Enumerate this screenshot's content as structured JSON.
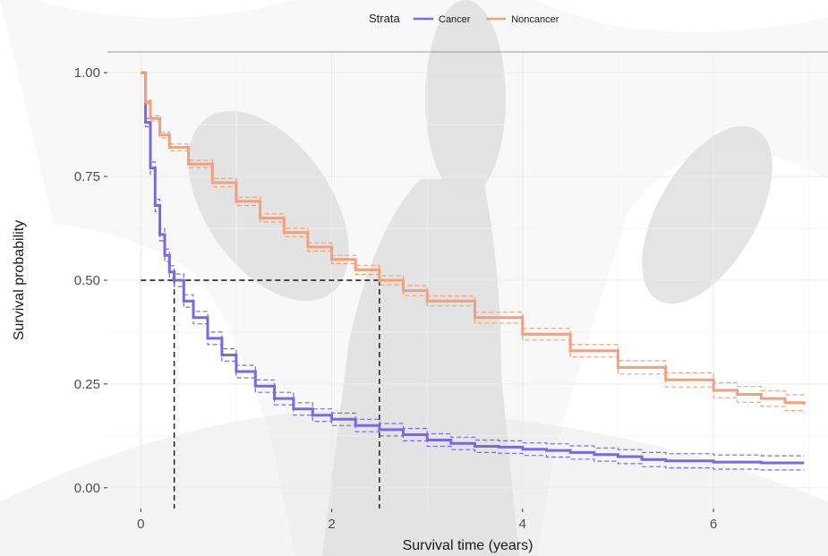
{
  "chart_data": {
    "type": "line",
    "xlabel": "Survival time (years)",
    "ylabel": "Survival probability",
    "xlim": [
      -0.35,
      7.2
    ],
    "ylim": [
      -0.05,
      1.05
    ],
    "x_ticks": [
      0,
      2,
      4,
      6
    ],
    "x_tick_labels": [
      "0",
      "2",
      "4",
      "6"
    ],
    "y_ticks": [
      0,
      0.25,
      0.5,
      0.75,
      1.0
    ],
    "y_tick_labels": [
      "0.00",
      "0.25",
      "0.50",
      "0.75",
      "1.00"
    ],
    "grid": true,
    "legend": {
      "title": "Strata",
      "position": "top"
    },
    "median_lines": [
      {
        "series": "Cancer",
        "x": 0.35,
        "y": 0.5
      },
      {
        "series": "Noncancer",
        "x": 2.5,
        "y": 0.5
      }
    ],
    "series": [
      {
        "name": "Cancer",
        "color": "#7B68DB",
        "x": [
          0,
          0.05,
          0.1,
          0.15,
          0.2,
          0.25,
          0.3,
          0.35,
          0.45,
          0.55,
          0.7,
          0.85,
          1.0,
          1.2,
          1.4,
          1.6,
          1.8,
          2.0,
          2.25,
          2.5,
          2.75,
          3.0,
          3.25,
          3.5,
          3.75,
          4.0,
          4.25,
          4.5,
          4.75,
          5.0,
          5.25,
          5.5,
          6.0,
          6.5,
          6.95
        ],
        "values": [
          1.0,
          0.88,
          0.77,
          0.68,
          0.61,
          0.56,
          0.52,
          0.5,
          0.45,
          0.41,
          0.36,
          0.32,
          0.28,
          0.245,
          0.215,
          0.19,
          0.175,
          0.165,
          0.15,
          0.14,
          0.128,
          0.115,
          0.107,
          0.1,
          0.098,
          0.093,
          0.09,
          0.085,
          0.08,
          0.075,
          0.068,
          0.065,
          0.062,
          0.06,
          0.06
        ],
        "lower": [
          1.0,
          0.87,
          0.755,
          0.665,
          0.595,
          0.545,
          0.505,
          0.485,
          0.435,
          0.395,
          0.345,
          0.305,
          0.265,
          0.23,
          0.2,
          0.175,
          0.16,
          0.15,
          0.135,
          0.125,
          0.113,
          0.1,
          0.092,
          0.085,
          0.083,
          0.078,
          0.074,
          0.069,
          0.064,
          0.058,
          0.051,
          0.048,
          0.045,
          0.043,
          0.042
        ],
        "upper": [
          1.0,
          0.89,
          0.785,
          0.695,
          0.625,
          0.575,
          0.535,
          0.515,
          0.465,
          0.425,
          0.375,
          0.335,
          0.295,
          0.26,
          0.23,
          0.205,
          0.19,
          0.18,
          0.165,
          0.155,
          0.143,
          0.13,
          0.122,
          0.115,
          0.113,
          0.108,
          0.106,
          0.101,
          0.096,
          0.092,
          0.085,
          0.082,
          0.079,
          0.077,
          0.077
        ]
      },
      {
        "name": "Noncancer",
        "color": "#F0A07E",
        "x": [
          0,
          0.05,
          0.1,
          0.2,
          0.3,
          0.5,
          0.75,
          1.0,
          1.25,
          1.5,
          1.75,
          2.0,
          2.25,
          2.5,
          2.75,
          3.0,
          3.5,
          4.0,
          4.5,
          5.0,
          5.5,
          6.0,
          6.25,
          6.5,
          6.75,
          6.95
        ],
        "values": [
          1.0,
          0.93,
          0.89,
          0.85,
          0.82,
          0.78,
          0.735,
          0.69,
          0.65,
          0.615,
          0.58,
          0.55,
          0.525,
          0.5,
          0.475,
          0.45,
          0.41,
          0.37,
          0.33,
          0.29,
          0.26,
          0.235,
          0.225,
          0.215,
          0.205,
          0.2
        ],
        "lower": [
          1.0,
          0.925,
          0.884,
          0.843,
          0.812,
          0.771,
          0.725,
          0.68,
          0.64,
          0.605,
          0.57,
          0.54,
          0.514,
          0.489,
          0.463,
          0.438,
          0.397,
          0.356,
          0.315,
          0.274,
          0.243,
          0.217,
          0.206,
          0.196,
          0.186,
          0.18
        ],
        "upper": [
          1.0,
          0.935,
          0.896,
          0.857,
          0.828,
          0.789,
          0.745,
          0.7,
          0.66,
          0.625,
          0.59,
          0.56,
          0.536,
          0.511,
          0.487,
          0.462,
          0.423,
          0.384,
          0.345,
          0.306,
          0.277,
          0.253,
          0.244,
          0.234,
          0.224,
          0.22
        ]
      }
    ]
  }
}
